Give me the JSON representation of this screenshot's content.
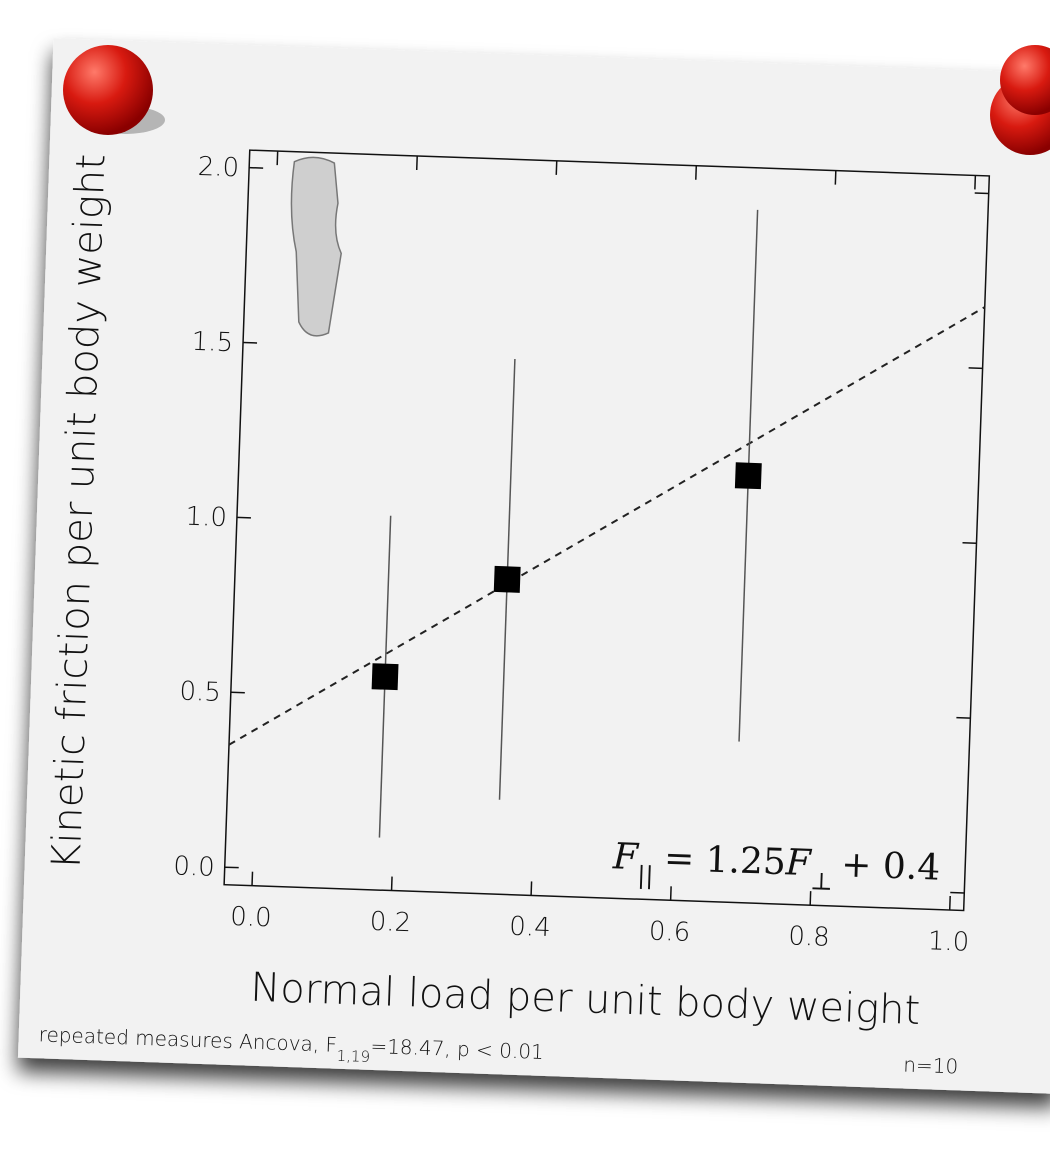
{
  "chart_data": {
    "type": "scatter",
    "x_label": "Normal load per unit body weight",
    "y_label": "Kinetic friction per unit body weight",
    "x": [
      0.18,
      0.35,
      0.69
    ],
    "values": [
      0.56,
      0.85,
      1.17
    ],
    "errors": [
      0.46,
      0.63,
      0.76
    ],
    "color": "#000000",
    "xlim": [
      -0.04,
      1.02
    ],
    "ylim": [
      -0.05,
      2.05
    ],
    "xticks": [
      {
        "value": 0,
        "label": "0.0"
      },
      0.2,
      0.4,
      0.6,
      0.8,
      {
        "value": 1,
        "label": "1.0"
      }
    ],
    "yticks": [
      {
        "value": 0,
        "label": "0.0"
      },
      0.5,
      {
        "value": 1,
        "label": "1.0"
      },
      1.5,
      {
        "value": 2,
        "label": "2.0"
      }
    ],
    "fit": {
      "slope": 1.25,
      "intercept": 0.4
    },
    "equation": {
      "lhs": "F",
      "lhs_sub": "||",
      "eq": "= 1.25",
      "rhs": "F",
      "rhs_sub": "⊥",
      "tail": "+ 0.4"
    },
    "footnote": {
      "prefix": "repeated measures Ancova, F",
      "sub": "1,19",
      "suffix": "=18.47, p < 0.01"
    },
    "n": "n=10"
  }
}
